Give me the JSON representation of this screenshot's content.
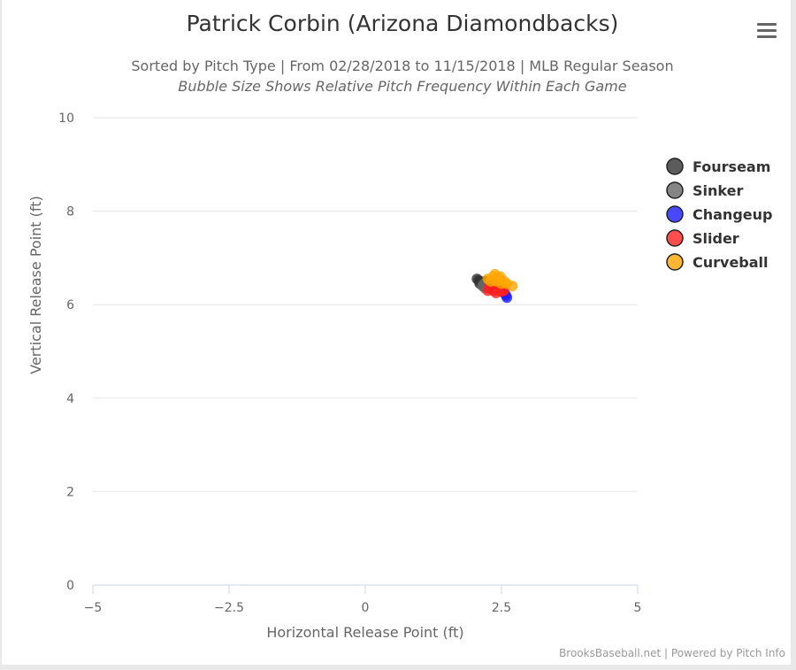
{
  "chart_data": {
    "type": "scatter",
    "title": "Patrick Corbin (Arizona Diamondbacks)",
    "subtitle": "Sorted by Pitch Type | From 02/28/2018 to 11/15/2018 | MLB Regular Season",
    "subtitle2": "Bubble Size Shows Relative Pitch Frequency Within Each Game",
    "xlabel": "Horizontal Release Point (ft)",
    "ylabel": "Vertical Release Point (ft)",
    "xlim": [
      -5,
      5
    ],
    "ylim": [
      0,
      10
    ],
    "x_ticks": [
      "−5",
      "−2.5",
      "0",
      "2.5",
      "5"
    ],
    "x_tick_values": [
      -5,
      -2.5,
      0,
      2.5,
      5
    ],
    "y_ticks": [
      "0",
      "2",
      "4",
      "6",
      "8",
      "10"
    ],
    "y_tick_values": [
      0,
      2,
      4,
      6,
      8,
      10
    ],
    "grid": true,
    "legend_position": "right",
    "series": [
      {
        "name": "Fourseam",
        "color": "#333333",
        "points": [
          [
            2.05,
            6.55
          ],
          [
            2.1,
            6.5
          ],
          [
            2.15,
            6.45
          ],
          [
            2.08,
            6.52
          ],
          [
            2.12,
            6.48
          ],
          [
            2.18,
            6.42
          ],
          [
            2.2,
            6.5
          ],
          [
            2.1,
            6.45
          ]
        ]
      },
      {
        "name": "Sinker",
        "color": "#666666",
        "points": [
          [
            2.15,
            6.4
          ],
          [
            2.2,
            6.35
          ],
          [
            2.25,
            6.4
          ],
          [
            2.18,
            6.45
          ],
          [
            2.22,
            6.38
          ]
        ]
      },
      {
        "name": "Changeup",
        "color": "#1a1aff",
        "points": [
          [
            2.6,
            6.15
          ],
          [
            2.55,
            6.25
          ],
          [
            2.5,
            6.3
          ],
          [
            2.58,
            6.2
          ]
        ]
      },
      {
        "name": "Slider",
        "color": "#ff2020",
        "points": [
          [
            2.25,
            6.3
          ],
          [
            2.3,
            6.35
          ],
          [
            2.35,
            6.3
          ],
          [
            2.4,
            6.25
          ],
          [
            2.28,
            6.4
          ],
          [
            2.45,
            6.3
          ],
          [
            2.5,
            6.28
          ],
          [
            2.32,
            6.45
          ],
          [
            2.55,
            6.3
          ]
        ]
      },
      {
        "name": "Curveball",
        "color": "#ffa500",
        "points": [
          [
            2.25,
            6.55
          ],
          [
            2.35,
            6.6
          ],
          [
            2.4,
            6.5
          ],
          [
            2.45,
            6.55
          ],
          [
            2.5,
            6.45
          ],
          [
            2.55,
            6.5
          ],
          [
            2.38,
            6.65
          ],
          [
            2.6,
            6.45
          ],
          [
            2.7,
            6.4
          ],
          [
            2.3,
            6.5
          ],
          [
            2.48,
            6.6
          ]
        ]
      }
    ]
  },
  "toolbar": {
    "menu_icon": "hamburger-menu-icon"
  },
  "credits": "BrooksBaseball.net | Powered by Pitch Info"
}
